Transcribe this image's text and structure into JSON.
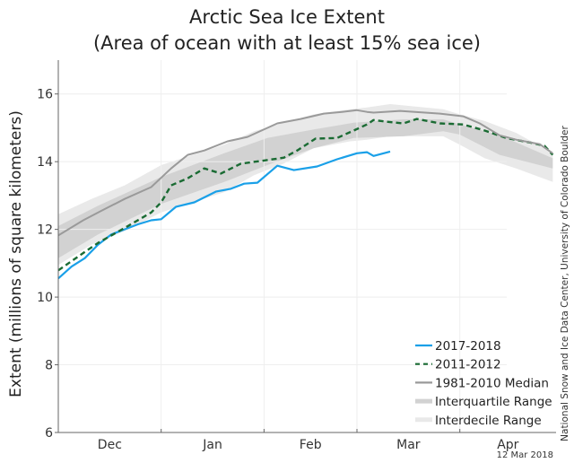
{
  "chart_data": {
    "type": "line",
    "title": "Arctic Sea Ice Extent",
    "subtitle": "(Area of ocean with at least 15% sea ice)",
    "xlabel": "",
    "ylabel": "Extent (millions of square kilometers)",
    "x_unit": "days since Dec 1",
    "xlim": [
      0,
      150
    ],
    "ylim": [
      6,
      17
    ],
    "y_ticks": [
      6,
      8,
      10,
      12,
      14,
      16
    ],
    "y_tick_labels": [
      "6",
      "8",
      "10",
      "12",
      "14",
      "16"
    ],
    "month_boundaries": [
      31,
      62,
      90,
      121
    ],
    "month_labels": [
      {
        "label": "Dec",
        "center": 15.5
      },
      {
        "label": "Jan",
        "center": 46.5
      },
      {
        "label": "Feb",
        "center": 76
      },
      {
        "label": "Mar",
        "center": 105.5
      },
      {
        "label": "Apr",
        "center": 135.5
      }
    ],
    "grid": true,
    "legend_position": "bottom-right",
    "colors": {
      "current": "#1aa0e8",
      "comparison": "#1a6b33",
      "median": "#9a9a9a",
      "interquartile": "#d2d2d2",
      "interdecile": "#e9e9e9"
    },
    "legend": [
      {
        "label": "2017-2018",
        "key": "current"
      },
      {
        "label": "2011-2012",
        "key": "comparison"
      },
      {
        "label": "1981-2010 Median",
        "key": "median"
      },
      {
        "label": "Interquartile Range",
        "key": "interquartile"
      },
      {
        "label": "Interdecile Range",
        "key": "interdecile"
      }
    ],
    "series": [
      {
        "name": "2017-2018",
        "key": "current",
        "x": [
          0,
          4,
          8,
          12,
          16,
          20,
          24,
          28,
          31,
          35.5,
          41,
          47.6,
          52,
          56,
          60,
          66,
          71,
          78,
          84,
          90,
          93,
          95,
          100
        ],
        "y": [
          10.55,
          10.9,
          11.15,
          11.55,
          11.85,
          12.0,
          12.15,
          12.27,
          12.3,
          12.67,
          12.8,
          13.12,
          13.2,
          13.35,
          13.38,
          13.88,
          13.75,
          13.86,
          14.07,
          14.25,
          14.28,
          14.17,
          14.3
        ]
      },
      {
        "name": "2011-2012",
        "key": "comparison",
        "x": [
          0,
          7.5,
          12,
          21,
          28,
          31,
          34,
          39,
          44,
          49,
          55,
          62.4,
          68,
          72,
          77.5,
          84,
          89,
          93,
          95,
          99,
          104,
          108,
          115,
          122,
          128.5,
          135,
          142,
          146.5,
          149
        ],
        "y": [
          10.79,
          11.3,
          11.6,
          12.1,
          12.5,
          12.8,
          13.3,
          13.51,
          13.8,
          13.65,
          13.94,
          14.04,
          14.12,
          14.33,
          14.68,
          14.7,
          14.92,
          15.1,
          15.23,
          15.18,
          15.13,
          15.26,
          15.13,
          15.1,
          14.92,
          14.7,
          14.57,
          14.47,
          14.2
        ]
      },
      {
        "name": "1981-2010 Median",
        "key": "median",
        "x": [
          0,
          7.5,
          13,
          20,
          28,
          34,
          39,
          44,
          51,
          57,
          66,
          73,
          80,
          85.5,
          90,
          93,
          95,
          103,
          115,
          122,
          127,
          133,
          138,
          145,
          149
        ],
        "y": [
          11.82,
          12.27,
          12.55,
          12.9,
          13.25,
          13.8,
          14.2,
          14.33,
          14.6,
          14.73,
          15.13,
          15.26,
          15.42,
          15.47,
          15.52,
          15.47,
          15.45,
          15.5,
          15.42,
          15.34,
          15.13,
          14.78,
          14.65,
          14.52,
          14.25
        ]
      }
    ],
    "bands": [
      {
        "name": "Interdecile Range",
        "key": "interdecile",
        "x": [
          0,
          10,
          20,
          31,
          50,
          59,
          68,
          77,
          88,
          93,
          100,
          116,
          121,
          128.5,
          138,
          149
        ],
        "upper": [
          12.45,
          12.9,
          13.3,
          13.9,
          14.5,
          14.9,
          15.15,
          15.4,
          15.55,
          15.6,
          15.7,
          15.55,
          15.4,
          15.2,
          14.85,
          14.25
        ],
        "lower": [
          10.95,
          11.55,
          11.95,
          12.5,
          13.1,
          13.6,
          13.95,
          14.4,
          14.6,
          14.65,
          14.75,
          14.75,
          14.5,
          14.1,
          13.8,
          13.4
        ]
      },
      {
        "name": "Interquartile Range",
        "key": "interquartile",
        "x": [
          0,
          12,
          31,
          50,
          63,
          77,
          89,
          104,
          116,
          121,
          133,
          149
        ],
        "upper": [
          12.1,
          12.7,
          13.55,
          14.25,
          14.7,
          14.95,
          15.15,
          15.25,
          15.25,
          15.1,
          14.78,
          14.1
        ],
        "lower": [
          11.15,
          11.85,
          12.75,
          13.4,
          13.9,
          14.4,
          14.7,
          14.75,
          14.9,
          14.8,
          14.2,
          13.8
        ]
      }
    ],
    "credit": "National Snow and Ice Data Center, University of Colorado Boulder",
    "date_stamp": "12 Mar 2018"
  }
}
